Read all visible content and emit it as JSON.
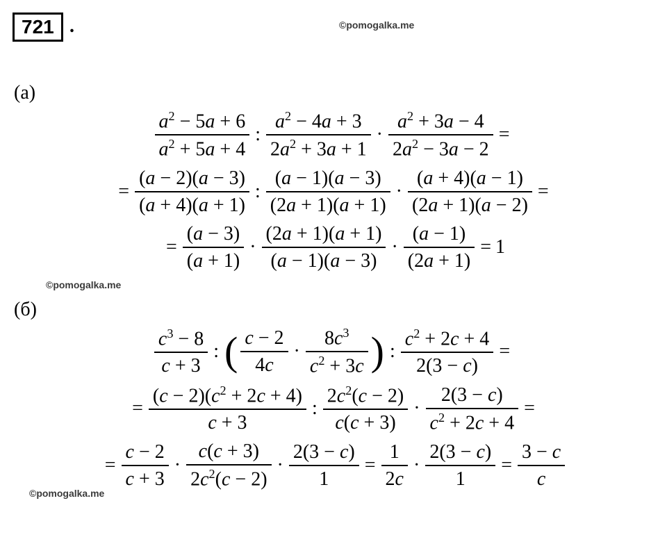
{
  "problem_number": "721",
  "watermark": "©pomogalka.me",
  "parts": {
    "a": {
      "label": "(а)",
      "line1": {
        "f1n": "a² − 5a + 6",
        "f1d": "a² + 5a + 4",
        "f2n": "a² − 4a + 3",
        "f2d": "2a² + 3a + 1",
        "f3n": "a² + 3a − 4",
        "f3d": "2a² − 3a − 2"
      },
      "line2": {
        "f1n": "(a − 2)(a − 3)",
        "f1d": "(a + 4)(a + 1)",
        "f2n": "(a − 1)(a − 3)",
        "f2d": "(2a + 1)(a + 1)",
        "f3n": "(a + 4)(a − 1)",
        "f3d": "(2a + 1)(a − 2)"
      },
      "line3": {
        "f1n": "(a − 3)",
        "f1d": "(a + 1)",
        "f2n": "(2a + 1)(a + 1)",
        "f2d": "(a − 1)(a − 3)",
        "f3n": "(a − 1)",
        "f3d": "(2a + 1)",
        "result": "1"
      }
    },
    "b": {
      "label": "(б)",
      "line1": {
        "f1n": "c³ − 8",
        "f1d": "c + 3",
        "f2n": "c − 2",
        "f2d": "4c",
        "f3n": "8c³",
        "f3d": "c² + 3c",
        "f4n": "c² + 2c + 4",
        "f4d": "2(3 − c)"
      },
      "line2": {
        "f1n": "(c − 2)(c² + 2c + 4)",
        "f1d": "c + 3",
        "f2n": "2c²(c − 2)",
        "f2d": "c(c + 3)",
        "f3n": "2(3 − c)",
        "f3d": "c² + 2c + 4"
      },
      "line3": {
        "f1n": "c − 2",
        "f1d": "c + 3",
        "f2n": "c(c + 3)",
        "f2d": "2c²(c − 2)",
        "f3n": "2(3 − c)",
        "f3d": "1",
        "f4n": "1",
        "f4d": "2c",
        "f5n": "2(3 − c)",
        "f5d": "1",
        "f6n": "3 − c",
        "f6d": "c"
      }
    }
  },
  "colors": {
    "text": "#000000",
    "bg": "#ffffff",
    "wm": "#3a3a3a"
  },
  "fontsize": {
    "body": 28,
    "wm": 14
  }
}
